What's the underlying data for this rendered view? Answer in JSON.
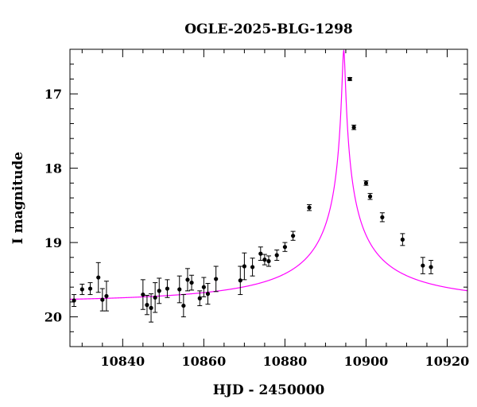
{
  "chart_data": {
    "type": "scatter",
    "title": "OGLE-2025-BLG-1298",
    "xlabel": "HJD - 2450000",
    "ylabel": "I magnitude",
    "xlim": [
      10827,
      10925
    ],
    "ylim": [
      20.4,
      16.4
    ],
    "y_inverted": true,
    "grid": false,
    "x_ticks": [
      10840,
      10860,
      10880,
      10900,
      10920
    ],
    "x_tick_labels": [
      "10840",
      "10860",
      "10880",
      "10900",
      "10920"
    ],
    "y_ticks": [
      17,
      18,
      19,
      20
    ],
    "y_tick_labels": [
      "17",
      "18",
      "19",
      "20"
    ],
    "series": [
      {
        "kind": "points_with_errorbars",
        "color": "#000000",
        "points": [
          {
            "x": 10828.0,
            "y": 19.78,
            "err": 0.08
          },
          {
            "x": 10830.0,
            "y": 19.63,
            "err": 0.07
          },
          {
            "x": 10832.0,
            "y": 19.62,
            "err": 0.08
          },
          {
            "x": 10834.0,
            "y": 19.47,
            "err": 0.2
          },
          {
            "x": 10835.0,
            "y": 19.77,
            "err": 0.15
          },
          {
            "x": 10836.0,
            "y": 19.72,
            "err": 0.2
          },
          {
            "x": 10845.0,
            "y": 19.7,
            "err": 0.2
          },
          {
            "x": 10846.0,
            "y": 19.84,
            "err": 0.13
          },
          {
            "x": 10847.0,
            "y": 19.88,
            "err": 0.19
          },
          {
            "x": 10848.0,
            "y": 19.74,
            "err": 0.2
          },
          {
            "x": 10849.0,
            "y": 19.65,
            "err": 0.17
          },
          {
            "x": 10851.0,
            "y": 19.62,
            "err": 0.12
          },
          {
            "x": 10854.0,
            "y": 19.63,
            "err": 0.18
          },
          {
            "x": 10855.0,
            "y": 19.85,
            "err": 0.15
          },
          {
            "x": 10856.0,
            "y": 19.5,
            "err": 0.15
          },
          {
            "x": 10857.0,
            "y": 19.54,
            "err": 0.1
          },
          {
            "x": 10859.0,
            "y": 19.75,
            "err": 0.1
          },
          {
            "x": 10860.0,
            "y": 19.6,
            "err": 0.13
          },
          {
            "x": 10861.0,
            "y": 19.69,
            "err": 0.14
          },
          {
            "x": 10863.0,
            "y": 19.49,
            "err": 0.17
          },
          {
            "x": 10869.0,
            "y": 19.51,
            "err": 0.19
          },
          {
            "x": 10870.0,
            "y": 19.32,
            "err": 0.18
          },
          {
            "x": 10872.0,
            "y": 19.33,
            "err": 0.12
          },
          {
            "x": 10874.0,
            "y": 19.15,
            "err": 0.09
          },
          {
            "x": 10875.0,
            "y": 19.23,
            "err": 0.07
          },
          {
            "x": 10876.0,
            "y": 19.25,
            "err": 0.07
          },
          {
            "x": 10878.0,
            "y": 19.17,
            "err": 0.07
          },
          {
            "x": 10880.0,
            "y": 19.06,
            "err": 0.06
          },
          {
            "x": 10882.0,
            "y": 18.91,
            "err": 0.06
          },
          {
            "x": 10886.0,
            "y": 18.53,
            "err": 0.04
          },
          {
            "x": 10896.0,
            "y": 16.8,
            "err": 0.02
          },
          {
            "x": 10897.0,
            "y": 17.45,
            "err": 0.03
          },
          {
            "x": 10900.0,
            "y": 18.2,
            "err": 0.03
          },
          {
            "x": 10901.0,
            "y": 18.38,
            "err": 0.04
          },
          {
            "x": 10904.0,
            "y": 18.66,
            "err": 0.06
          },
          {
            "x": 10909.0,
            "y": 18.96,
            "err": 0.08
          },
          {
            "x": 10914.0,
            "y": 19.31,
            "err": 0.11
          },
          {
            "x": 10916.0,
            "y": 19.33,
            "err": 0.09
          }
        ]
      },
      {
        "kind": "model_curve",
        "color": "#ff00ff",
        "model": {
          "t0": 10894.5,
          "tE": 60,
          "u0": 0.006,
          "baseline_mag": 19.8,
          "blend_fraction": 0.13
        }
      }
    ]
  }
}
